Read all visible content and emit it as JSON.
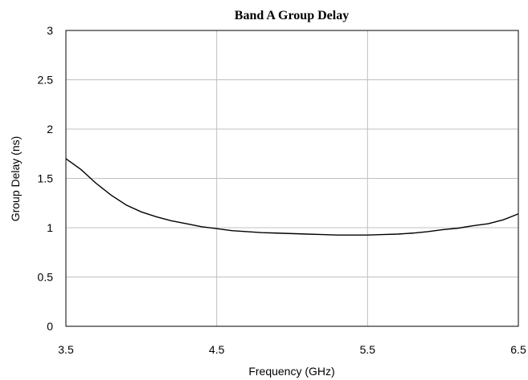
{
  "chart_data": {
    "type": "line",
    "title": "Band A Group Delay",
    "xlabel": "Frequency (GHz)",
    "ylabel": "Group Delay (ns)",
    "xlim": [
      3.5,
      6.5
    ],
    "ylim": [
      0,
      3
    ],
    "x_ticks": [
      "3.5",
      "4.5",
      "5.5",
      "6.5"
    ],
    "y_ticks": [
      "0",
      "0.5",
      "1",
      "1.5",
      "2",
      "2.5",
      "3"
    ],
    "grid": true,
    "legend": "none",
    "series": [
      {
        "color": "#000000",
        "x": [
          3.5,
          3.6,
          3.7,
          3.8,
          3.9,
          4.0,
          4.1,
          4.2,
          4.3,
          4.4,
          4.5,
          4.6,
          4.7,
          4.8,
          4.9,
          5.0,
          5.1,
          5.2,
          5.3,
          5.4,
          5.5,
          5.6,
          5.7,
          5.8,
          5.9,
          6.0,
          6.1,
          6.2,
          6.3,
          6.4,
          6.5
        ],
        "y": [
          1.7,
          1.59,
          1.45,
          1.33,
          1.23,
          1.16,
          1.11,
          1.07,
          1.04,
          1.01,
          0.99,
          0.97,
          0.96,
          0.95,
          0.945,
          0.94,
          0.935,
          0.93,
          0.925,
          0.925,
          0.925,
          0.93,
          0.935,
          0.945,
          0.96,
          0.98,
          0.995,
          1.02,
          1.04,
          1.08,
          1.14
        ]
      }
    ]
  }
}
